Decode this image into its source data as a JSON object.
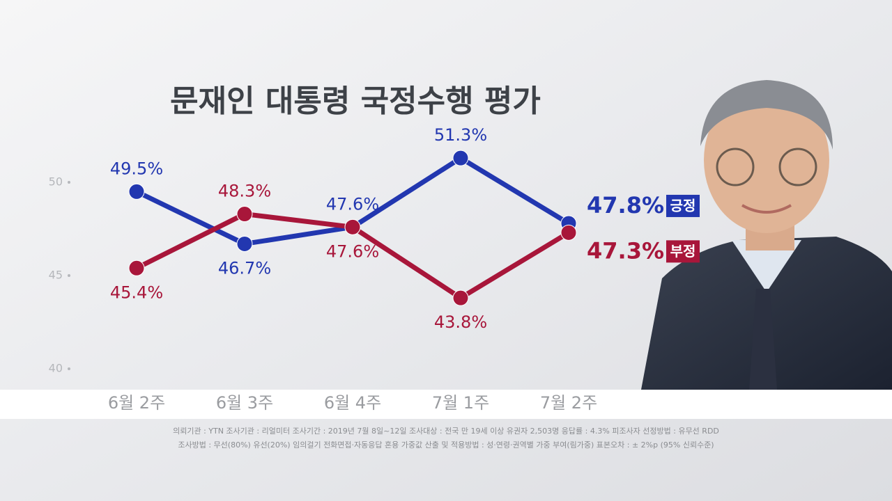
{
  "chart_data": {
    "type": "line",
    "title": "문재인 대통령 국정수행 평가",
    "categories": [
      "6월 2주",
      "6월 3주",
      "6월 4주",
      "7월 1주",
      "7월 2주"
    ],
    "series": [
      {
        "name": "긍정",
        "color": "#2237b0",
        "values": [
          49.5,
          46.7,
          47.6,
          51.3,
          47.8
        ],
        "value_labels": [
          "49.5%",
          "46.7%",
          "47.6%",
          "51.3%",
          "47.8%"
        ]
      },
      {
        "name": "부정",
        "color": "#a8163a",
        "values": [
          45.4,
          48.3,
          47.6,
          43.8,
          47.3
        ],
        "value_labels": [
          "45.4%",
          "48.3%",
          "47.6%",
          "43.8%",
          "47.3%"
        ]
      }
    ],
    "ylim": [
      39,
      53
    ],
    "yticks": [
      40,
      45,
      50
    ],
    "grid": false,
    "notes": [
      "의뢰기관 : YTN     조사기관 : 리얼미터     조사기간 : 2019년 7월 8일~12일     조사대상 : 전국 만 19세 이상 유권자 2,503명       응답률 : 4.3%     피조사자 선정방법 : 유무선 RDD",
      "조사방법 : 무선(80%) 유선(20%) 임의걸기 전화면접·자동응답 혼용     가중값 산출 및 적용방법 : 성·연령·권역별 가중 부여(림가중)     표본오차 : ± 2%p (95% 신뢰수준)"
    ]
  }
}
